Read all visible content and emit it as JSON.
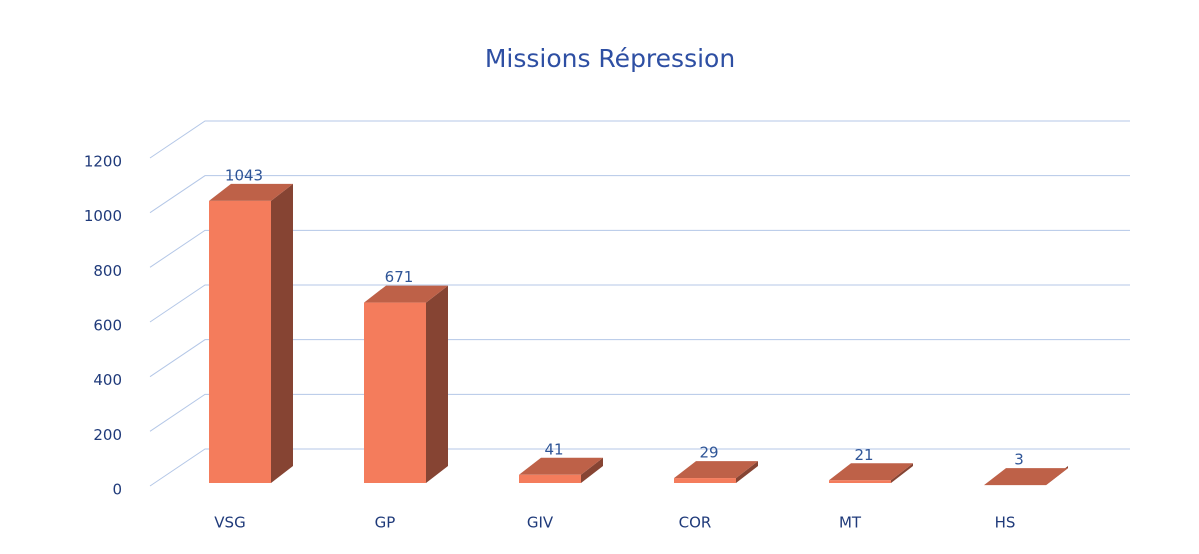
{
  "chart_data": {
    "type": "bar3d",
    "title": "Missions Répression",
    "categories": [
      "VSG",
      "GP",
      "GIV",
      "COR",
      "MT",
      "HS"
    ],
    "values": [
      1043,
      671,
      41,
      29,
      21,
      3
    ],
    "color": "#f47c5c",
    "ylim": [
      0,
      1200
    ],
    "yticks": [
      0,
      200,
      400,
      600,
      800,
      1000,
      1200
    ],
    "grid": true
  }
}
